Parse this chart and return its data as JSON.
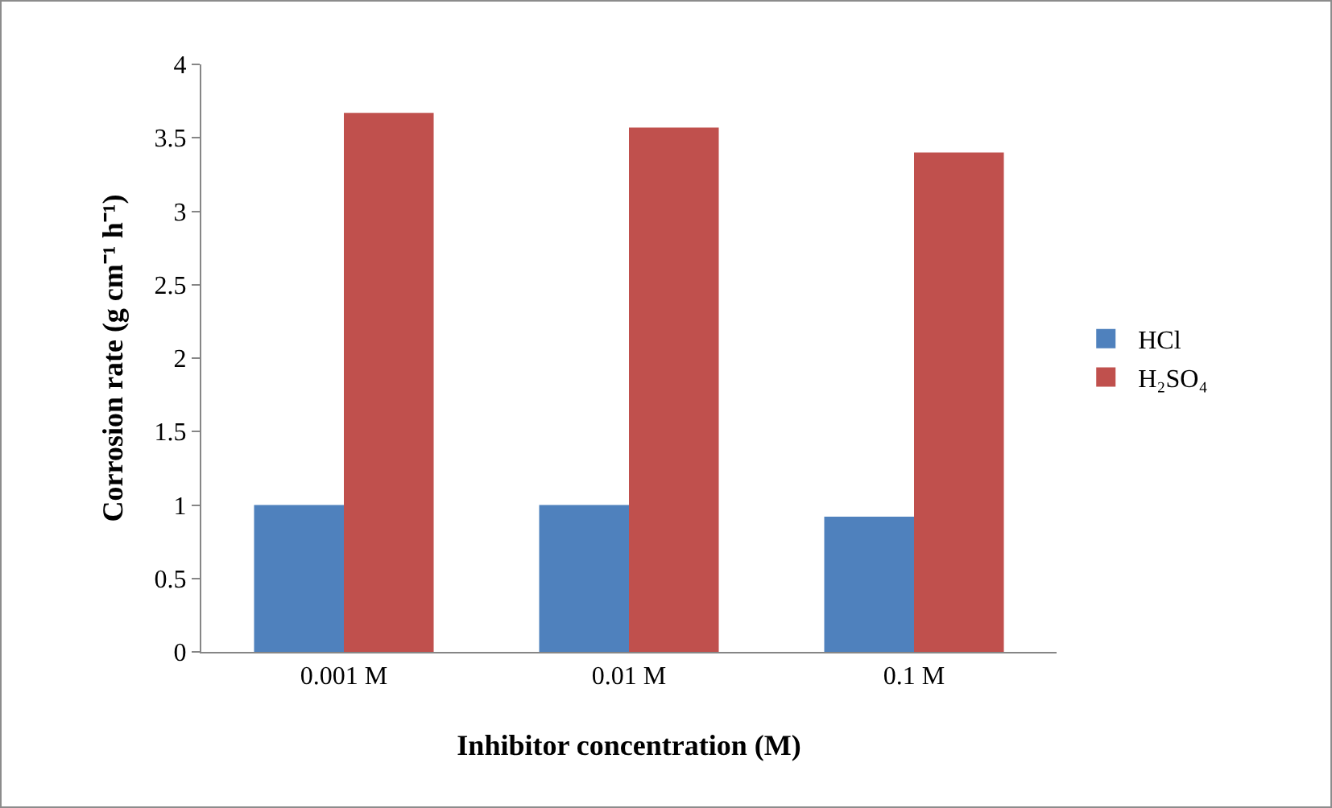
{
  "chart_data": {
    "type": "bar",
    "xlabel": "Inhibitor concentration (M)",
    "ylabel": "Corrosion rate (g cm⁻¹ h⁻¹)",
    "categories": [
      "0.001 M",
      "0.01 M",
      "0.1 M"
    ],
    "series": [
      {
        "name": "HCl",
        "color": "#4f81bd",
        "values": [
          1.0,
          1.0,
          0.92
        ]
      },
      {
        "name": "H₂SO₄",
        "color": "#c0504d",
        "values": [
          3.67,
          3.57,
          3.4
        ]
      }
    ],
    "ylim": [
      0,
      4
    ],
    "yticks": [
      0,
      0.5,
      1,
      1.5,
      2,
      2.5,
      3,
      3.5,
      4
    ],
    "grid": false,
    "legend": "right"
  }
}
